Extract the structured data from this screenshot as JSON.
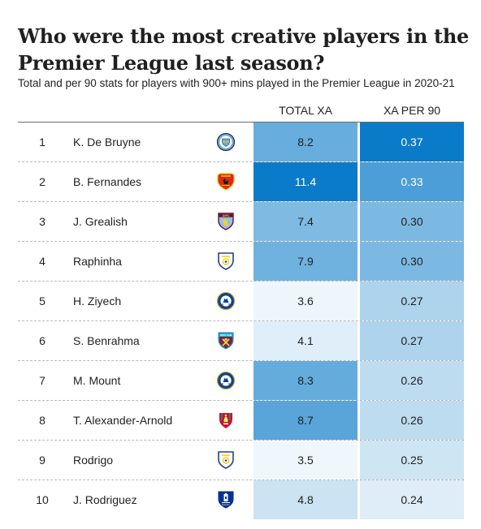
{
  "title": "Who were the most creative players in the Premier League last season?",
  "subtitle": "Total and per 90 stats for players with 900+ mins played in the Premier League in 2020-21",
  "columns": {
    "total": "TOTAL XA",
    "per90": "XA PER 90"
  },
  "colors": {
    "scale_low": "#ffffff",
    "scale_high": "#0a7bc8",
    "text_dark": "#222222",
    "text_light": "#ffffff"
  },
  "chart_data": {
    "type": "table",
    "columns": [
      "",
      "",
      "",
      "TOTAL XA",
      "XA PER 90"
    ],
    "rows": [
      {
        "rank": "1",
        "player": "K. De Bruyne",
        "club_icon": "man-city-crest",
        "total_xa": "8.2",
        "xa_per_90": "0.37"
      },
      {
        "rank": "2",
        "player": "B. Fernandes",
        "club_icon": "man-utd-crest",
        "total_xa": "11.4",
        "xa_per_90": "0.33"
      },
      {
        "rank": "3",
        "player": "J. Grealish",
        "club_icon": "aston-villa-crest",
        "total_xa": "7.4",
        "xa_per_90": "0.30"
      },
      {
        "rank": "4",
        "player": "Raphinha",
        "club_icon": "leeds-crest",
        "total_xa": "7.9",
        "xa_per_90": "0.30"
      },
      {
        "rank": "5",
        "player": "H. Ziyech",
        "club_icon": "chelsea-crest",
        "total_xa": "3.6",
        "xa_per_90": "0.27"
      },
      {
        "rank": "6",
        "player": "S. Benrahma",
        "club_icon": "west-ham-crest",
        "total_xa": "4.1",
        "xa_per_90": "0.27"
      },
      {
        "rank": "7",
        "player": "M. Mount",
        "club_icon": "chelsea-crest",
        "total_xa": "8.3",
        "xa_per_90": "0.26"
      },
      {
        "rank": "8",
        "player": "T. Alexander-Arnold",
        "club_icon": "liverpool-crest",
        "total_xa": "8.7",
        "xa_per_90": "0.26"
      },
      {
        "rank": "9",
        "player": "Rodrigo",
        "club_icon": "leeds-crest",
        "total_xa": "3.5",
        "xa_per_90": "0.25"
      },
      {
        "rank": "10",
        "player": "J. Rodriguez",
        "club_icon": "everton-crest",
        "total_xa": "4.8",
        "xa_per_90": "0.24"
      }
    ]
  }
}
